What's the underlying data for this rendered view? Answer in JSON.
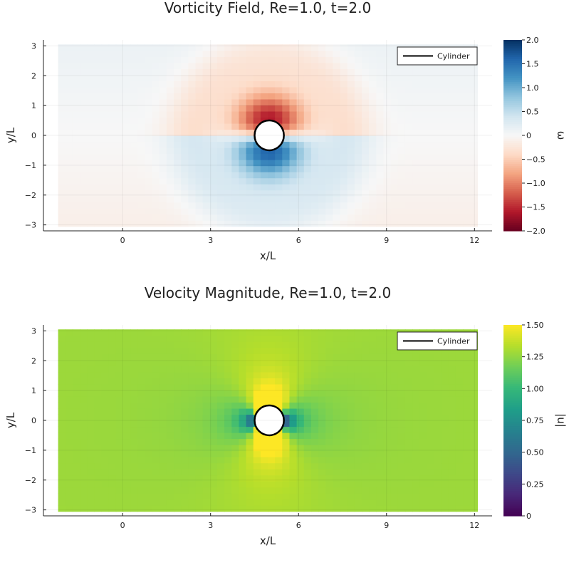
{
  "colors": {
    "cylinder_line": "#000000",
    "cylinder_fill": "#ffffff",
    "background": "#ffffff",
    "axis": "#222222",
    "vorticity_colormap": [
      "#67001f",
      "#b2182b",
      "#d6604d",
      "#f4a582",
      "#fddbc7",
      "#f7f7f7",
      "#d1e5f0",
      "#92c5de",
      "#4393c3",
      "#2166ac",
      "#053061"
    ],
    "velocity_colormap": [
      "#440154",
      "#482878",
      "#3e4989",
      "#31688e",
      "#26828e",
      "#1f9e89",
      "#35b779",
      "#6ece58",
      "#b5de2b",
      "#fde725"
    ]
  },
  "chart_data": [
    {
      "type": "heatmap",
      "title": "Vorticity Field, Re=1.0, t=2.0",
      "xlabel": "x/L",
      "ylabel": "y/L",
      "colorbar_label": "ω",
      "colormap": "RdBu",
      "xlim": [
        -2.7,
        12.6
      ],
      "ylim": [
        -3.2,
        3.2
      ],
      "xticks": [
        0,
        3,
        6,
        9,
        12
      ],
      "yticks": [
        -3,
        -2,
        -1,
        0,
        1,
        2,
        3
      ],
      "clim": [
        -2.0,
        2.0
      ],
      "colorbar_ticks": [
        2.0,
        1.5,
        1.0,
        0.5,
        0,
        -0.5,
        -1.0,
        -1.5,
        -2.0
      ],
      "colorbar_tick_labels": [
        "2.0",
        "1.5",
        "1.0",
        "0.5",
        "0",
        "−0.5",
        "−1.0",
        "−1.5",
        "−2.0"
      ],
      "data_extent": {
        "x": [
          -2.2,
          12.1
        ],
        "y": [
          -3.05,
          3.05
        ]
      },
      "grid": {
        "nx": 58,
        "ny": 30
      },
      "cylinder": {
        "center": [
          5.0,
          0.0
        ],
        "radius": 0.5
      },
      "legend": {
        "position": "top-right",
        "entries": [
          "Cylinder"
        ]
      }
    },
    {
      "type": "heatmap",
      "title": "Velocity Magnitude, Re=1.0, t=2.0",
      "xlabel": "x/L",
      "ylabel": "y/L",
      "colorbar_label": "|u|",
      "colormap": "viridis",
      "xlim": [
        -2.7,
        12.6
      ],
      "ylim": [
        -3.2,
        3.2
      ],
      "xticks": [
        0,
        3,
        6,
        9,
        12
      ],
      "yticks": [
        -3,
        -2,
        -1,
        0,
        1,
        2,
        3
      ],
      "clim": [
        0,
        1.5
      ],
      "colorbar_ticks": [
        1.5,
        1.25,
        1.0,
        0.75,
        0.5,
        0.25,
        0
      ],
      "colorbar_tick_labels": [
        "1.50",
        "1.25",
        "1.00",
        "0.75",
        "0.50",
        "0.25",
        "0"
      ],
      "data_extent": {
        "x": [
          -2.2,
          12.1
        ],
        "y": [
          -3.05,
          3.05
        ]
      },
      "grid": {
        "nx": 58,
        "ny": 30
      },
      "cylinder": {
        "center": [
          5.0,
          0.0
        ],
        "radius": 0.5
      },
      "legend": {
        "position": "top-right",
        "entries": [
          "Cylinder"
        ]
      }
    }
  ]
}
